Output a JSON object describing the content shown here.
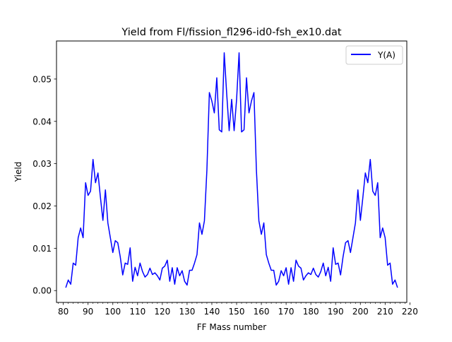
{
  "chart_data": {
    "type": "line",
    "title": "Yield from  Fl/fission_fl296-id0-fsh_ex10.dat",
    "xlabel": "FF Mass number",
    "ylabel": "Yield",
    "xlim": [
      77.25,
      218.75
    ],
    "ylim": [
      -0.0028,
      0.059
    ],
    "x_ticks": [
      80,
      90,
      100,
      110,
      120,
      130,
      140,
      150,
      160,
      170,
      180,
      190,
      200,
      210,
      220
    ],
    "x_tick_labels": [
      "80",
      "90",
      "100",
      "110",
      "120",
      "130",
      "140",
      "150",
      "160",
      "170",
      "180",
      "190",
      "200",
      "210",
      "220"
    ],
    "x_minor_step": 2,
    "y_ticks": [
      0.0,
      0.01,
      0.02,
      0.03,
      0.04,
      0.05
    ],
    "y_tick_labels": [
      "0.00",
      "0.01",
      "0.02",
      "0.03",
      "0.04",
      "0.05"
    ],
    "grid": false,
    "legend_position": "upper-right",
    "series": [
      {
        "name": "Y(A)",
        "color": "#0000ff",
        "x": [
          81,
          82,
          83,
          84,
          85,
          86,
          87,
          88,
          89,
          90,
          91,
          92,
          93,
          94,
          95,
          96,
          97,
          98,
          99,
          100,
          101,
          102,
          103,
          104,
          105,
          106,
          107,
          108,
          109,
          110,
          111,
          112,
          113,
          114,
          115,
          116,
          117,
          118,
          119,
          120,
          121,
          122,
          123,
          124,
          125,
          126,
          127,
          128,
          129,
          130,
          131,
          132,
          133,
          134,
          135,
          136,
          137,
          138,
          139,
          140,
          141,
          142,
          143,
          144,
          145,
          146,
          147,
          148,
          149,
          150,
          151,
          152,
          153,
          154,
          155,
          156,
          157,
          158,
          159,
          160,
          161,
          162,
          163,
          164,
          165,
          166,
          167,
          168,
          169,
          170,
          171,
          172,
          173,
          174,
          175,
          176,
          177,
          178,
          179,
          180,
          181,
          182,
          183,
          184,
          185,
          186,
          187,
          188,
          189,
          190,
          191,
          192,
          193,
          194,
          195,
          196,
          197,
          198,
          199,
          200,
          201,
          202,
          203,
          204,
          205,
          206,
          207,
          208,
          209,
          210,
          211,
          212,
          213,
          214,
          215
        ],
        "y": [
          0.0007,
          0.0025,
          0.0015,
          0.0065,
          0.006,
          0.0125,
          0.0148,
          0.0125,
          0.0255,
          0.0225,
          0.0235,
          0.031,
          0.0255,
          0.0278,
          0.022,
          0.0166,
          0.0238,
          0.016,
          0.0125,
          0.009,
          0.0118,
          0.0113,
          0.008,
          0.0037,
          0.0065,
          0.0062,
          0.0101,
          0.0022,
          0.0055,
          0.0035,
          0.0065,
          0.0045,
          0.0032,
          0.0038,
          0.0053,
          0.0038,
          0.0042,
          0.0035,
          0.0025,
          0.0053,
          0.0058,
          0.0072,
          0.0022,
          0.0054,
          0.0015,
          0.0054,
          0.0035,
          0.0047,
          0.0022,
          0.0013,
          0.0048,
          0.0048,
          0.0065,
          0.0085,
          0.016,
          0.0133,
          0.0165,
          0.0285,
          0.0468,
          0.0448,
          0.042,
          0.0503,
          0.038,
          0.0375,
          0.0562,
          0.0465,
          0.0378,
          0.0452,
          0.0378,
          0.0452,
          0.0562,
          0.0375,
          0.038,
          0.0503,
          0.042,
          0.0448,
          0.0468,
          0.0285,
          0.0165,
          0.0133,
          0.016,
          0.0085,
          0.0065,
          0.0048,
          0.0048,
          0.0013,
          0.0022,
          0.0047,
          0.0035,
          0.0054,
          0.0015,
          0.0054,
          0.0022,
          0.0072,
          0.0058,
          0.0053,
          0.0025,
          0.0035,
          0.0042,
          0.0038,
          0.0053,
          0.0038,
          0.0032,
          0.0045,
          0.0065,
          0.0035,
          0.0055,
          0.0022,
          0.0101,
          0.0062,
          0.0065,
          0.0037,
          0.008,
          0.0113,
          0.0118,
          0.009,
          0.0125,
          0.016,
          0.0238,
          0.0166,
          0.022,
          0.0278,
          0.0255,
          0.031,
          0.0235,
          0.0225,
          0.0255,
          0.0125,
          0.0148,
          0.0125,
          0.006,
          0.0065,
          0.0015,
          0.0025,
          0.0007
        ]
      }
    ]
  }
}
